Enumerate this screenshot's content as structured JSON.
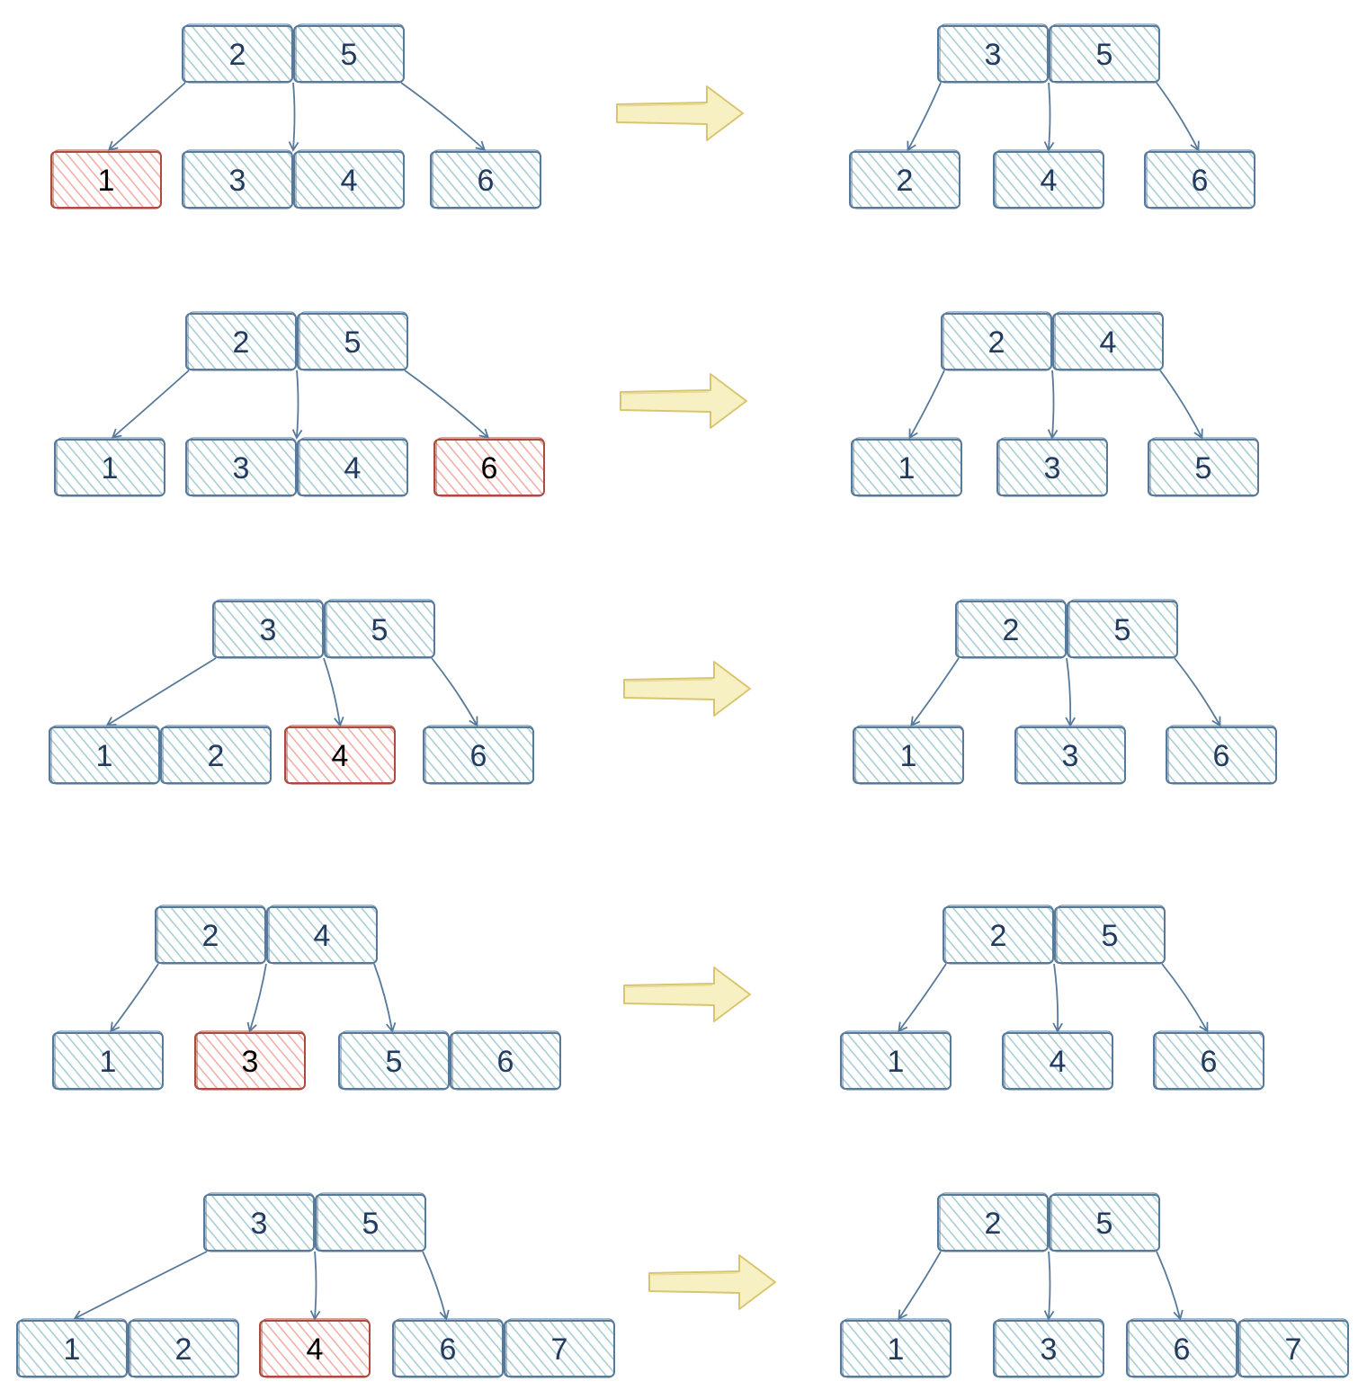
{
  "colors": {
    "normal_stroke": "#587a9a",
    "normal_fill": "#b5d7de",
    "normal_text": "#243a5e",
    "deleted_stroke": "#ad4a3f",
    "deleted_fill": "#f1b7b0",
    "deleted_text": "#000000",
    "arrow_stroke": "#d8c570",
    "arrow_fill": "#f7f0c2",
    "edge_stroke": "#587a9a"
  },
  "panels": [
    {
      "before": {
        "root": [
          "2",
          "5"
        ],
        "leaves": [
          {
            "keys": [
              "1"
            ],
            "deleted": "1"
          },
          {
            "keys": [
              "3",
              "4"
            ]
          },
          {
            "keys": [
              "6"
            ]
          }
        ]
      },
      "after": {
        "root": [
          "3",
          "5"
        ],
        "leaves": [
          {
            "keys": [
              "2"
            ]
          },
          {
            "keys": [
              "4"
            ]
          },
          {
            "keys": [
              "6"
            ]
          }
        ]
      }
    },
    {
      "before": {
        "root": [
          "2",
          "5"
        ],
        "leaves": [
          {
            "keys": [
              "1"
            ]
          },
          {
            "keys": [
              "3",
              "4"
            ]
          },
          {
            "keys": [
              "6"
            ],
            "deleted": "6"
          }
        ]
      },
      "after": {
        "root": [
          "2",
          "4"
        ],
        "leaves": [
          {
            "keys": [
              "1"
            ]
          },
          {
            "keys": [
              "3"
            ]
          },
          {
            "keys": [
              "5"
            ]
          }
        ]
      }
    },
    {
      "before": {
        "root": [
          "3",
          "5"
        ],
        "leaves": [
          {
            "keys": [
              "1",
              "2"
            ]
          },
          {
            "keys": [
              "4"
            ],
            "deleted": "4"
          },
          {
            "keys": [
              "6"
            ]
          }
        ]
      },
      "after": {
        "root": [
          "2",
          "5"
        ],
        "leaves": [
          {
            "keys": [
              "1"
            ]
          },
          {
            "keys": [
              "3"
            ]
          },
          {
            "keys": [
              "6"
            ]
          }
        ]
      }
    },
    {
      "before": {
        "root": [
          "2",
          "4"
        ],
        "leaves": [
          {
            "keys": [
              "1"
            ]
          },
          {
            "keys": [
              "3"
            ],
            "deleted": "3"
          },
          {
            "keys": [
              "5",
              "6"
            ]
          }
        ]
      },
      "after": {
        "root": [
          "2",
          "5"
        ],
        "leaves": [
          {
            "keys": [
              "1"
            ]
          },
          {
            "keys": [
              "4"
            ]
          },
          {
            "keys": [
              "6"
            ]
          }
        ]
      }
    },
    {
      "before": {
        "root": [
          "3",
          "5"
        ],
        "leaves": [
          {
            "keys": [
              "1",
              "2"
            ]
          },
          {
            "keys": [
              "4"
            ],
            "deleted": "4"
          },
          {
            "keys": [
              "6",
              "7"
            ]
          }
        ]
      },
      "after": {
        "root": [
          "2",
          "5"
        ],
        "leaves": [
          {
            "keys": [
              "1"
            ]
          },
          {
            "keys": [
              "3"
            ]
          },
          {
            "keys": [
              "6",
              "7"
            ]
          }
        ]
      }
    }
  ]
}
